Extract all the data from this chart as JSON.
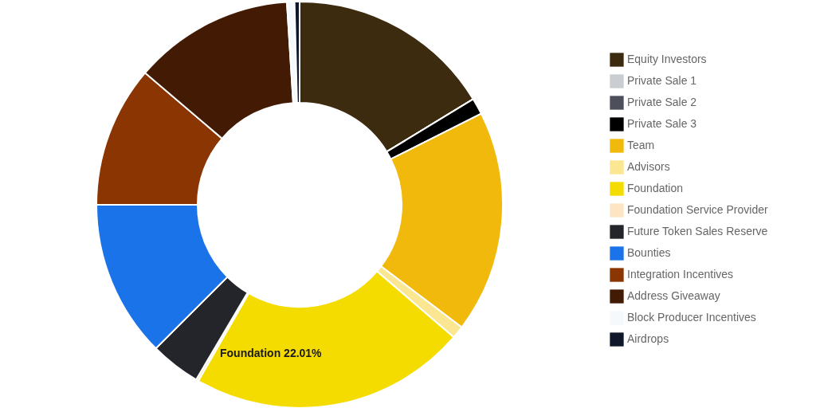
{
  "chart_data": {
    "type": "donut",
    "categories": [
      "Equity Investors",
      "Private Sale 1",
      "Private Sale 2",
      "Private Sale 3",
      "Team",
      "Advisors",
      "Foundation",
      "Foundation Service Provider",
      "Future Token Sales Reserve",
      "Bounties",
      "Integration Incentives",
      "Address Giveaway",
      "Block Producer Incentives",
      "Airdrops"
    ],
    "values": [
      16.3,
      0,
      0,
      1.3,
      17.7,
      1.0,
      22.01,
      0.2,
      4.0,
      12.49,
      11.25,
      12.75,
      0.6,
      0.4
    ],
    "colors": [
      "#3d2b10",
      "#cacdd1",
      "#4d505b",
      "#000000",
      "#f0b90b",
      "#fbe691",
      "#f5dc00",
      "#fde4c2",
      "#23252b",
      "#1a73e8",
      "#8b3503",
      "#431a03",
      "#f5f9fc",
      "#10172a"
    ],
    "legend": "right",
    "annotations": [
      "Foundation 22.01%"
    ]
  }
}
